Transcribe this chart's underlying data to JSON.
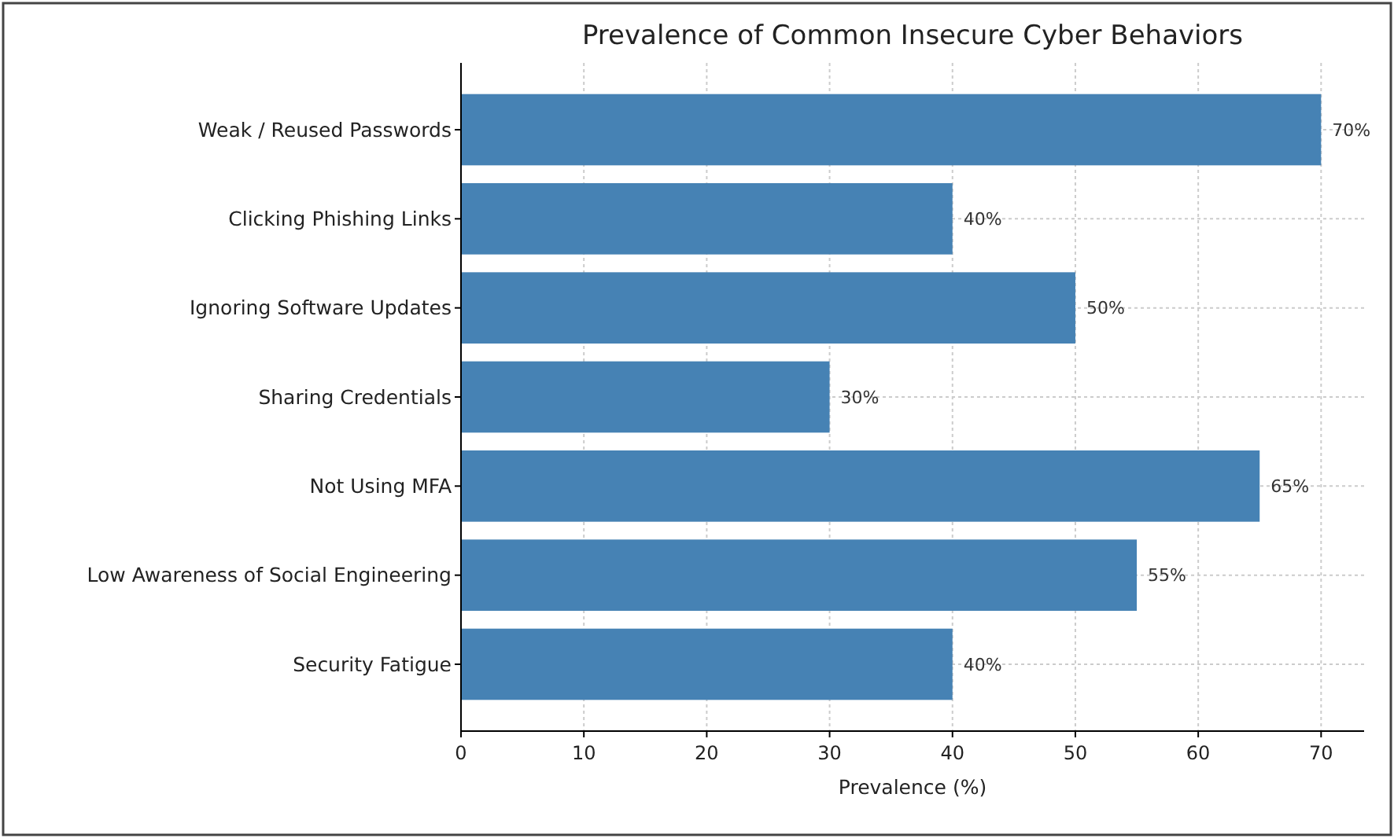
{
  "chart_data": {
    "type": "bar",
    "orientation": "horizontal",
    "title": "Prevalence of Common Insecure Cyber Behaviors",
    "xlabel": "Prevalence (%)",
    "categories": [
      "Weak / Reused Passwords",
      "Clicking Phishing Links",
      "Ignoring Software Updates",
      "Sharing Credentials",
      "Not Using MFA",
      "Low Awareness of Social Engineering",
      "Security Fatigue"
    ],
    "values": [
      70,
      40,
      50,
      30,
      65,
      55,
      40
    ],
    "value_labels": [
      "70%",
      "40%",
      "50%",
      "30%",
      "65%",
      "55%",
      "40%"
    ],
    "color": "#4682b4",
    "xlim": [
      0,
      73.5
    ],
    "xticks": [
      0,
      10,
      20,
      30,
      40,
      50,
      60,
      70
    ],
    "grid": true
  }
}
